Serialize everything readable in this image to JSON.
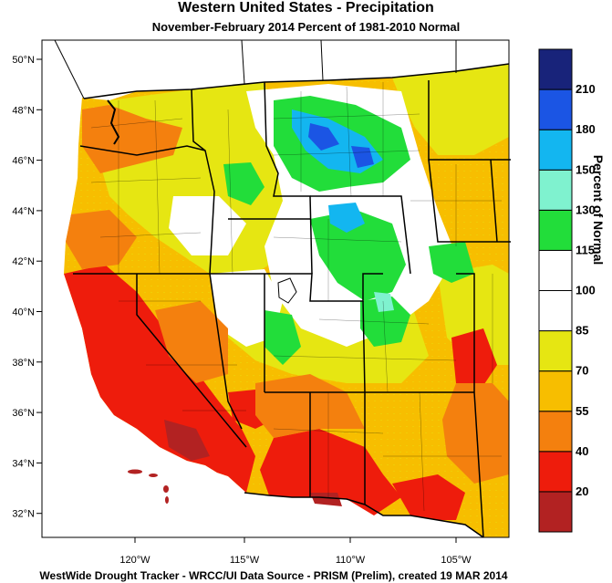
{
  "title": "Western United States - Precipitation",
  "subtitle": "November-February 2014  Percent of 1981-2010 Normal",
  "footer": "WestWide Drought Tracker - WRCC/UI  Data Source - PRISM (Prelim), created 19 MAR 2014",
  "legend": {
    "title": "Percent of Normal",
    "classes": [
      {
        "label": "",
        "color": "#b22222"
      },
      {
        "label": "20",
        "color": "#ee1c0c"
      },
      {
        "label": "40",
        "color": "#f4800e"
      },
      {
        "label": "55",
        "color": "#f7be00"
      },
      {
        "label": "70",
        "color": "#e6e612"
      },
      {
        "label": "85",
        "color": "#ffffff"
      },
      {
        "label": "100",
        "color": "#ffffff"
      },
      {
        "label": "115",
        "color": "#22dd3a"
      },
      {
        "label": "130",
        "color": "#7ff2cf"
      },
      {
        "label": "150",
        "color": "#13b6f0"
      },
      {
        "label": "180",
        "color": "#1b55e4"
      },
      {
        "label": "210",
        "color": "#18237a"
      }
    ]
  },
  "axes": {
    "lat_labels": [
      "50°N",
      "48°N",
      "46°N",
      "44°N",
      "42°N",
      "40°N",
      "38°N",
      "36°N",
      "34°N",
      "32°N"
    ],
    "lon_labels": [
      "120°W",
      "115°W",
      "110°W",
      "105°W"
    ]
  },
  "colors": {
    "ocean": "#ffffff",
    "border": "#000000"
  }
}
